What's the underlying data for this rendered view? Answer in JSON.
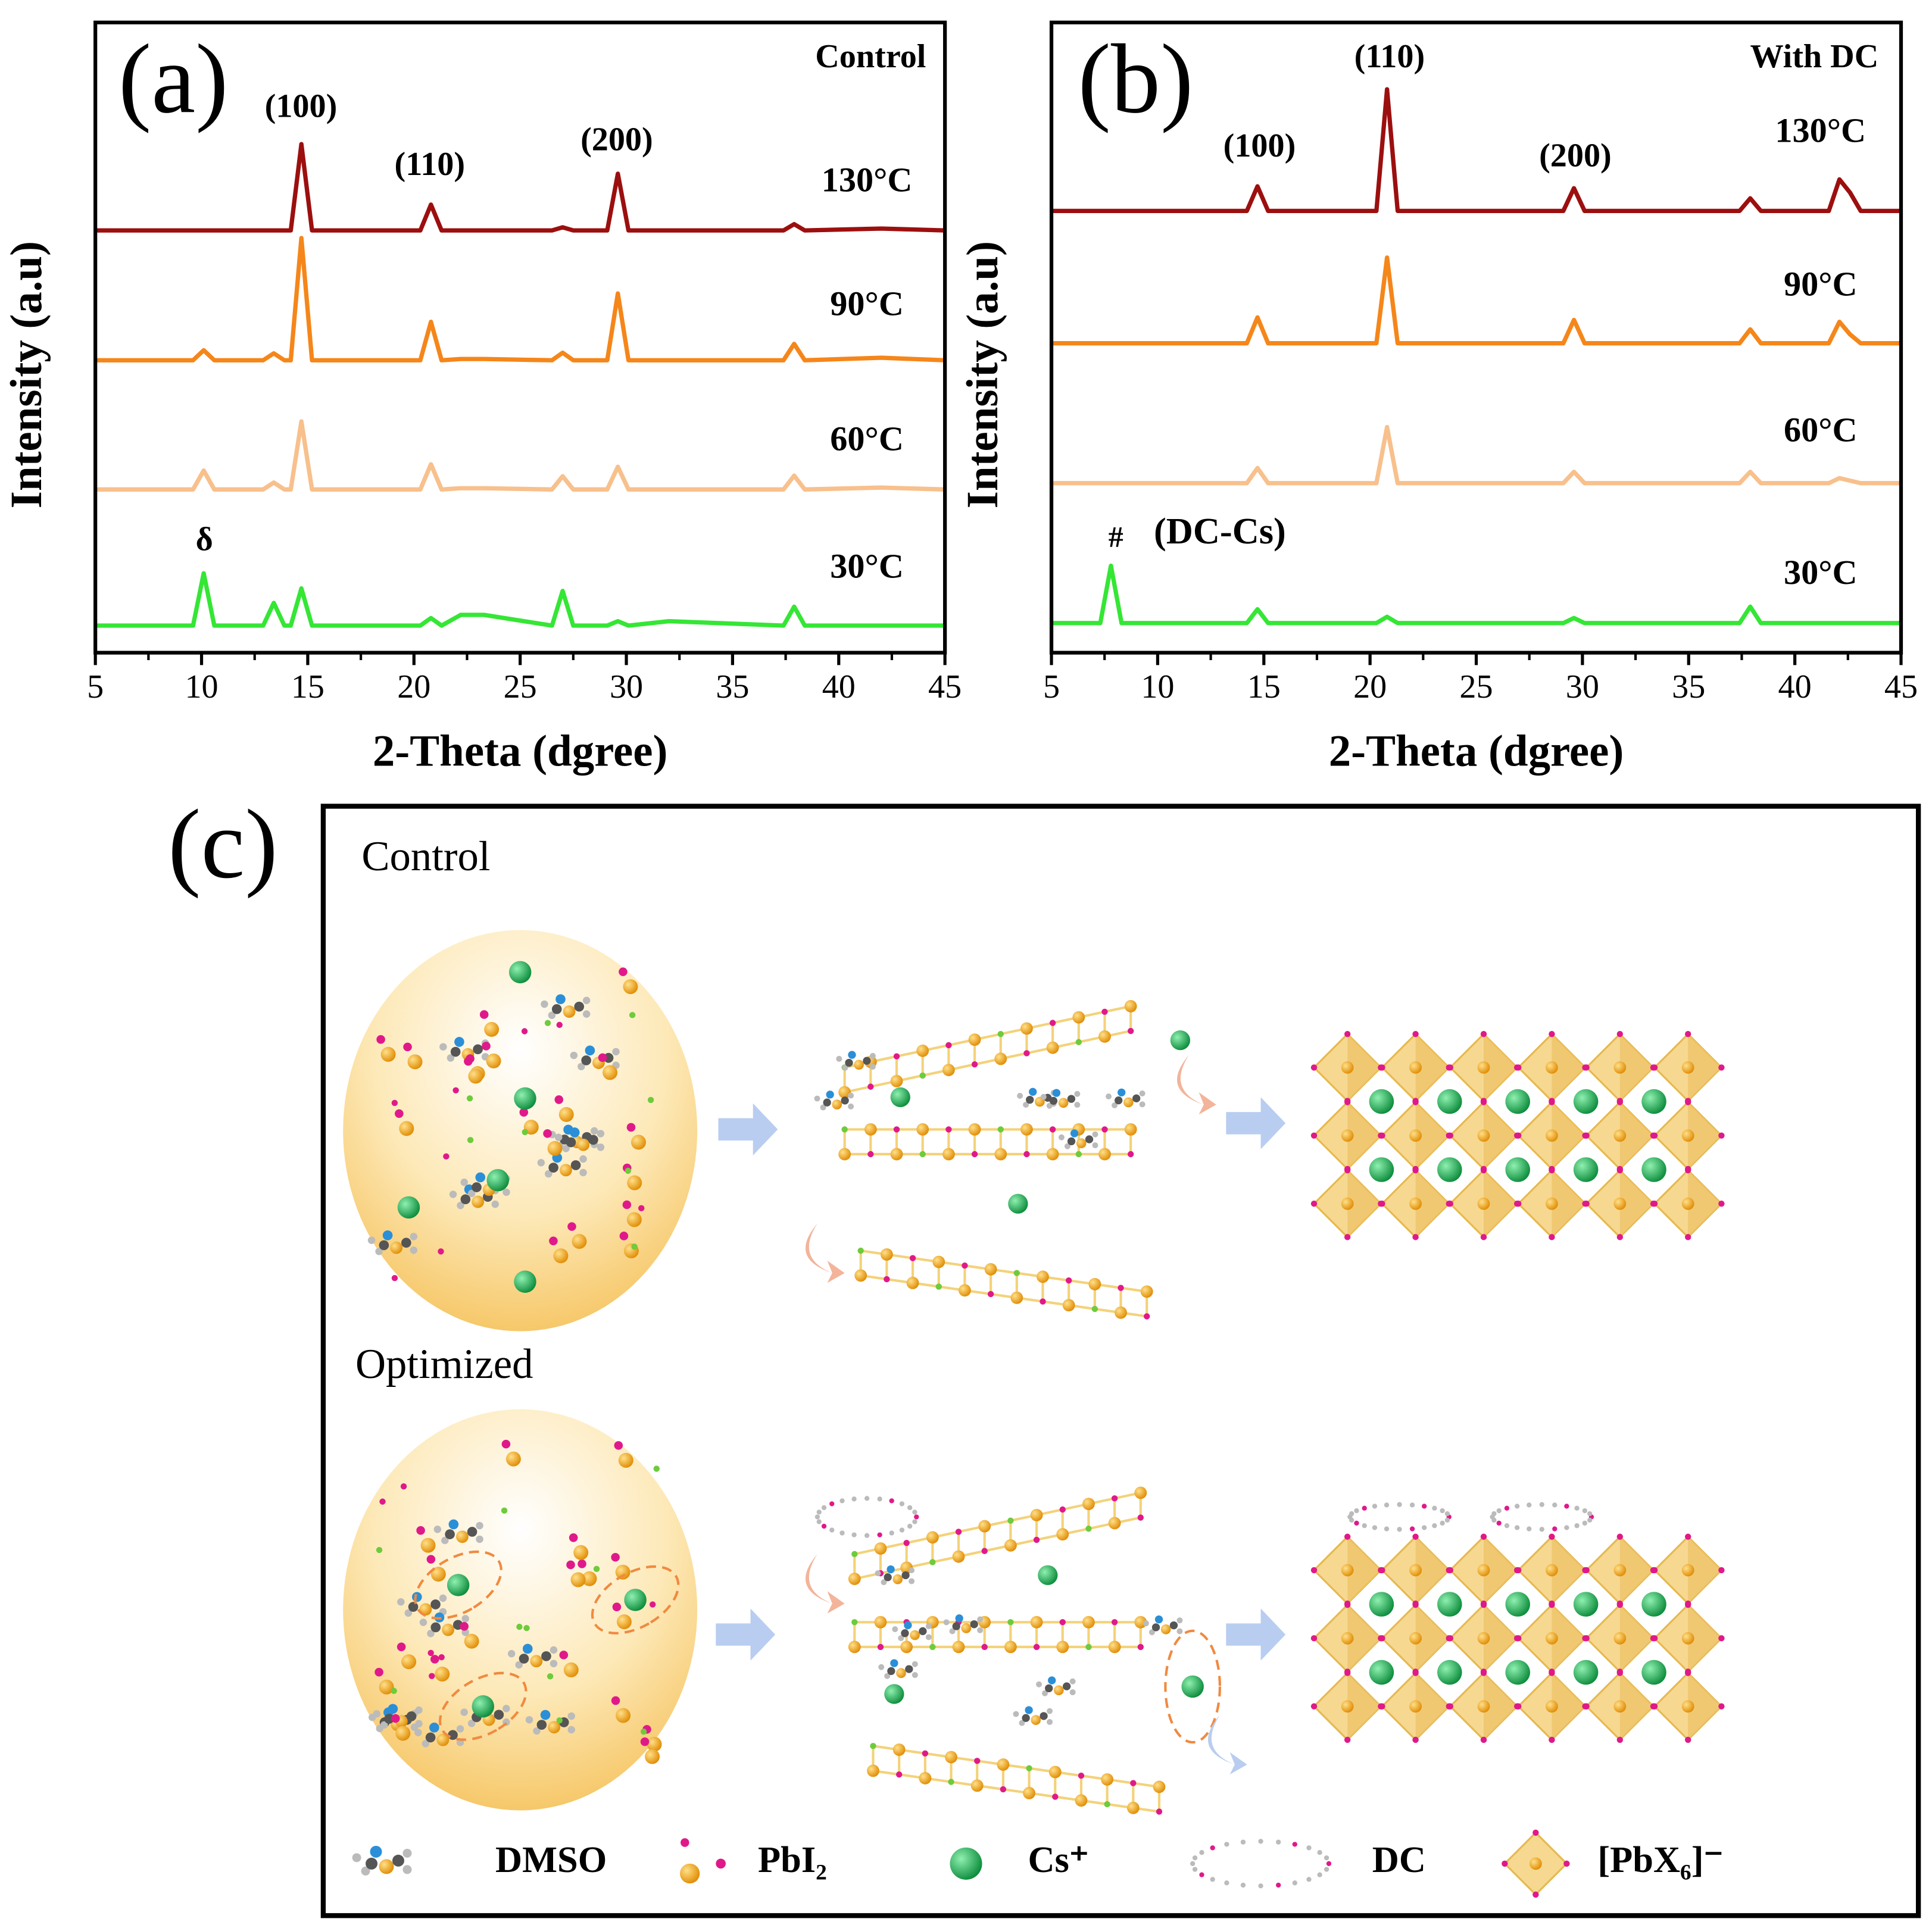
{
  "chart_data": [
    {
      "type": "line",
      "xlabel": "2-Theta (dgree)",
      "ylabel": "Intensity (a.u)",
      "annotations": [
        "(a)",
        "Control",
        "(100)",
        "(110)",
        "(200)",
        "δ"
      ],
      "x": [
        5,
        9.6,
        10.1,
        10.6,
        12.9,
        13.4,
        13.9,
        14.2,
        14.7,
        15.2,
        20.3,
        20.8,
        21.3,
        22.2,
        23.3,
        26.5,
        27,
        27.5,
        29.1,
        29.6,
        30.1,
        32,
        37.4,
        37.9,
        38.4,
        42,
        45
      ],
      "series": [
        {
          "name": "130°C",
          "color": "#9c0f0f",
          "values": [
            67,
            67,
            67,
            67,
            67,
            67,
            67,
            67,
            80.7,
            67,
            67,
            71.1,
            67,
            67,
            67,
            67,
            67.5,
            67,
            67,
            76,
            67,
            67,
            67,
            68,
            67,
            67.3,
            67
          ]
        },
        {
          "name": "90°C",
          "color": "#f5861a",
          "values": [
            46.4,
            46.4,
            48,
            46.4,
            46.4,
            47.5,
            46.4,
            46.4,
            65.8,
            46.4,
            46.4,
            52.5,
            46.4,
            46.6,
            46.6,
            46.4,
            47.6,
            46.4,
            46.4,
            57,
            46.4,
            46.4,
            46.4,
            49,
            46.4,
            46.8,
            46.4
          ]
        },
        {
          "name": "60°C",
          "color": "#f8c08c",
          "values": [
            25.9,
            25.9,
            28.9,
            25.9,
            25.9,
            27,
            25.9,
            25.9,
            36.7,
            25.9,
            25.9,
            29.9,
            25.9,
            26.1,
            26.1,
            25.9,
            28,
            25.9,
            25.9,
            29.5,
            25.9,
            25.9,
            25.9,
            28.1,
            25.9,
            26.2,
            25.9
          ]
        },
        {
          "name": "30°C",
          "color": "#35e635",
          "values": [
            4.3,
            4.3,
            12.6,
            4.3,
            4.3,
            7.9,
            4.3,
            4.3,
            10.2,
            4.3,
            4.3,
            5.5,
            4.3,
            6,
            6,
            4.3,
            9.8,
            4.3,
            4.3,
            5,
            4.3,
            5,
            4.3,
            7.3,
            4.3,
            4.3,
            4.3
          ]
        }
      ],
      "xlim": [
        5,
        45
      ],
      "xticks": [
        5,
        10,
        15,
        20,
        25,
        30,
        35,
        40,
        45
      ],
      "ylim": [
        0,
        100
      ]
    },
    {
      "type": "line",
      "xlabel": "2-Theta (dgree)",
      "ylabel": "Intensity (a.u)",
      "annotations": [
        "(b)",
        "With DC",
        "(100)",
        "(110)",
        "(200)",
        "#",
        "(DC-Cs)"
      ],
      "x": [
        5,
        7.3,
        7.8,
        8.3,
        14.2,
        14.7,
        15.2,
        20.3,
        20.8,
        21.3,
        29.1,
        29.6,
        30.1,
        37.4,
        37.9,
        38.4,
        41.6,
        42.1,
        42.6,
        43.1,
        45
      ],
      "series": [
        {
          "name": "130°C",
          "color": "#9c0f0f",
          "values": [
            70.1,
            70.1,
            70.1,
            70.1,
            70.1,
            74,
            70.1,
            70.1,
            89.4,
            70.1,
            70.1,
            73.7,
            70.1,
            70.1,
            72.1,
            70.1,
            70.1,
            75.1,
            73,
            70.1,
            70.1
          ]
        },
        {
          "name": "90°C",
          "color": "#f5861a",
          "values": [
            49.1,
            49.1,
            49.1,
            49.1,
            49.1,
            53.2,
            49.1,
            49.1,
            62.7,
            49.1,
            49.1,
            52.8,
            49.1,
            49.1,
            51.3,
            49.1,
            49.1,
            52.5,
            50.5,
            49.1,
            49.1
          ]
        },
        {
          "name": "60°C",
          "color": "#f8c08c",
          "values": [
            26.9,
            26.9,
            26.9,
            26.9,
            26.9,
            29.3,
            26.9,
            26.9,
            35.8,
            26.9,
            26.9,
            28.7,
            26.9,
            26.9,
            28.7,
            26.9,
            26.9,
            27.7,
            27.3,
            26.9,
            26.9
          ]
        },
        {
          "name": "30°C",
          "color": "#35e635",
          "values": [
            4.7,
            4.7,
            13.8,
            4.7,
            4.7,
            6.9,
            4.7,
            4.7,
            5.7,
            4.7,
            4.7,
            5.5,
            4.7,
            4.7,
            7.3,
            4.7,
            4.7,
            4.7,
            4.7,
            4.7,
            4.7
          ]
        }
      ],
      "xlim": [
        5,
        45
      ],
      "xticks": [
        5,
        10,
        15,
        20,
        25,
        30,
        35,
        40,
        45
      ],
      "ylim": [
        0,
        100
      ]
    }
  ],
  "diagram": {
    "panel": "(c)",
    "rows": [
      "Control",
      "Optimized"
    ],
    "legend": [
      "DMSO",
      "PbI₂",
      "Cs⁺",
      "DC",
      "[PbX₆]⁻"
    ]
  }
}
